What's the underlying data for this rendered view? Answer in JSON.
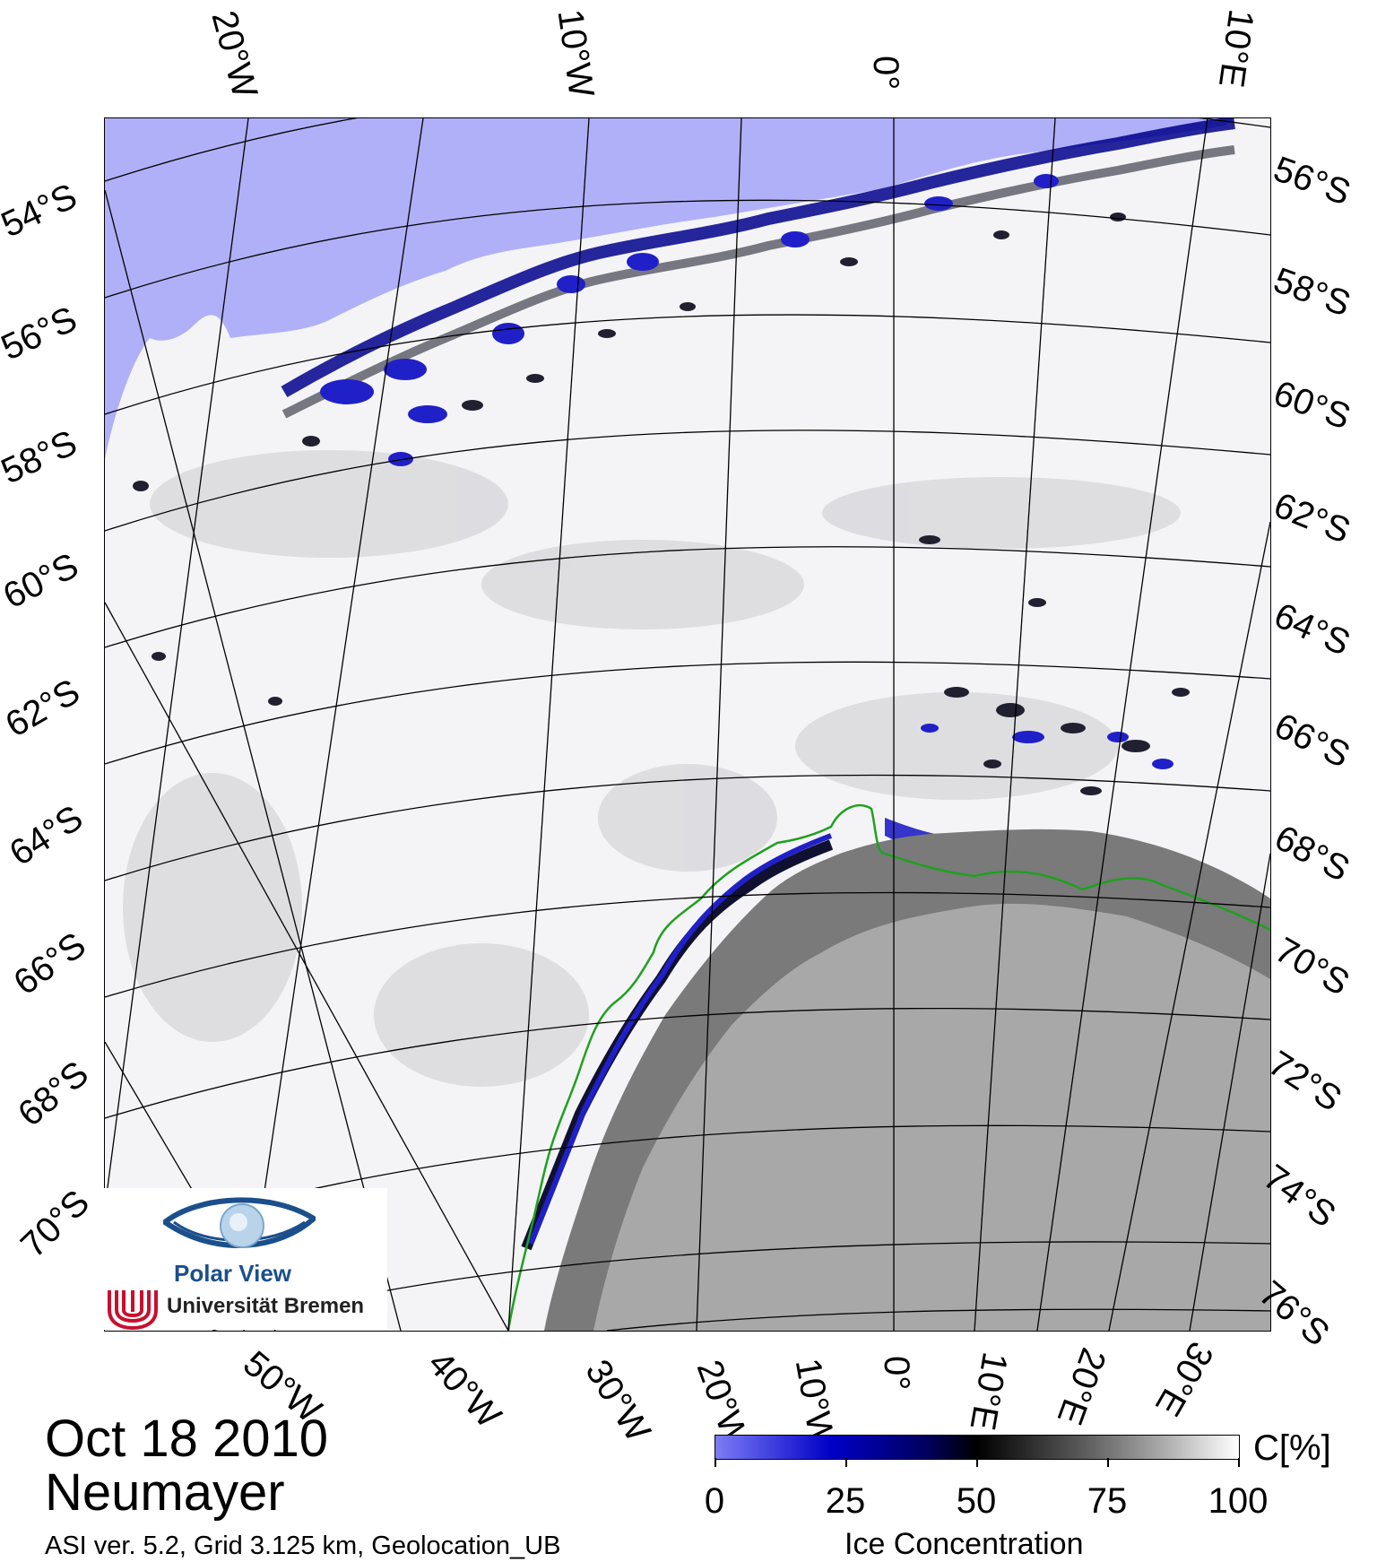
{
  "map": {
    "top_lon_labels": [
      "20°W",
      "10°W",
      "0°",
      "10°E"
    ],
    "bottom_lon_labels": [
      "50°W",
      "40°W",
      "30°W",
      "20°W",
      "10°W",
      "0°",
      "10°E",
      "20°E",
      "30°E"
    ],
    "left_lat_labels": [
      "54°S",
      "56°S",
      "58°S",
      "60°S",
      "62°S",
      "64°S",
      "66°S",
      "68°S",
      "70°S"
    ],
    "right_lat_labels": [
      "56°S",
      "58°S",
      "60°S",
      "62°S",
      "64°S",
      "66°S",
      "68°S",
      "70°S",
      "72°S",
      "74°S",
      "76°S"
    ],
    "colors": {
      "open_water": "#b0b0f8",
      "ice_high": "#ffffff",
      "ice_mid": "#404040",
      "ice_low": "#00008c",
      "land": "#a8a8a8",
      "ice_shelf": "#7a7a7a",
      "coastline": "#1fa01f",
      "graticule": "#000000"
    }
  },
  "logo": {
    "title": "Polar View",
    "institution": "Universität Bremen"
  },
  "footer": {
    "date": "Oct 18 2010",
    "station": "Neumayer",
    "algorithm": "ASI ver. 5.2,  Grid 3.125 km, Geolocation_UB"
  },
  "colorbar": {
    "unit": "C[%]",
    "label": "Ice Concentration",
    "ticks": [
      "0",
      "25",
      "50",
      "75",
      "100"
    ],
    "min": 0,
    "max": 100
  }
}
